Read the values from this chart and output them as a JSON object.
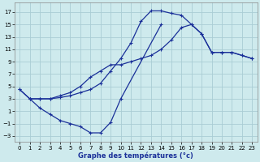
{
  "xlabel": "Graphe des températures (°c)",
  "background_color": "#ceeaed",
  "grid_color": "#aacdd4",
  "line_color": "#1a3099",
  "xlim": [
    -0.5,
    23.5
  ],
  "ylim": [
    -4,
    18.5
  ],
  "xticks": [
    0,
    1,
    2,
    3,
    4,
    5,
    6,
    7,
    8,
    9,
    10,
    11,
    12,
    13,
    14,
    15,
    16,
    17,
    18,
    19,
    20,
    21,
    22,
    23
  ],
  "yticks": [
    -3,
    -1,
    1,
    3,
    5,
    7,
    9,
    11,
    13,
    15,
    17
  ],
  "line1_x": [
    0,
    1,
    2,
    3,
    4,
    5,
    6,
    7,
    8,
    9,
    10,
    11,
    12,
    13,
    14,
    15,
    16,
    17,
    18,
    19,
    20,
    21,
    22,
    23
  ],
  "line1_y": [
    4.5,
    3.0,
    3.0,
    3.0,
    3.2,
    3.5,
    4.0,
    4.5,
    5.5,
    7.5,
    9.5,
    12.0,
    15.5,
    17.2,
    17.2,
    16.8,
    16.5,
    15.0,
    13.5,
    10.5,
    10.5,
    10.5,
    10.0,
    9.5
  ],
  "line2_x": [
    0,
    1,
    2,
    3,
    4,
    5,
    6,
    7,
    8,
    9,
    10,
    11,
    12,
    13,
    14,
    15,
    16,
    17,
    18,
    19,
    20,
    21,
    22,
    23
  ],
  "line2_y": [
    4.5,
    3.0,
    3.0,
    3.0,
    3.5,
    4.0,
    5.0,
    6.5,
    7.5,
    8.5,
    8.5,
    9.0,
    9.5,
    10.0,
    11.0,
    12.5,
    14.5,
    15.0,
    13.5,
    10.5,
    10.5,
    10.5,
    10.0,
    9.5
  ],
  "line3_x": [
    1,
    2,
    3,
    4,
    5,
    6,
    7,
    8,
    9,
    10,
    14
  ],
  "line3_y": [
    3.0,
    1.5,
    0.5,
    -0.5,
    -1.0,
    -1.5,
    -2.5,
    -2.5,
    -0.8,
    3.0,
    15.0
  ]
}
